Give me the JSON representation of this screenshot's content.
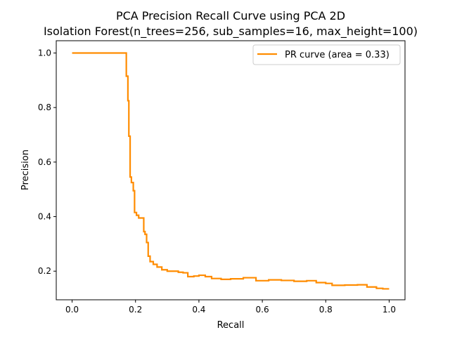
{
  "chart_data": {
    "type": "line",
    "title": "PCA Precision Recall Curve using PCA 2D",
    "subtitle": "Isolation Forest(n_trees=256, sub_samples=16, max_height=100)",
    "xlabel": "Recall",
    "ylabel": "Precision",
    "xlim": [
      -0.05,
      1.05
    ],
    "ylim": [
      0.095,
      1.045
    ],
    "xticks": [
      0.0,
      0.2,
      0.4,
      0.6,
      0.8,
      1.0
    ],
    "xtick_labels": [
      "0.0",
      "0.2",
      "0.4",
      "0.6",
      "0.8",
      "1.0"
    ],
    "yticks": [
      0.2,
      0.4,
      0.6,
      0.8,
      1.0
    ],
    "ytick_labels": [
      "0.2",
      "0.4",
      "0.6",
      "0.8",
      "1.0"
    ],
    "grid": false,
    "legend_position": "top-right",
    "step": true,
    "series": [
      {
        "name": "PR curve (area = 0.33)",
        "color": "#ff8c00",
        "points": [
          [
            0.0,
            1.0
          ],
          [
            0.171,
            1.0
          ],
          [
            0.171,
            0.915
          ],
          [
            0.176,
            0.915
          ],
          [
            0.176,
            0.825
          ],
          [
            0.179,
            0.825
          ],
          [
            0.179,
            0.695
          ],
          [
            0.183,
            0.695
          ],
          [
            0.183,
            0.545
          ],
          [
            0.187,
            0.545
          ],
          [
            0.187,
            0.525
          ],
          [
            0.193,
            0.525
          ],
          [
            0.193,
            0.495
          ],
          [
            0.197,
            0.495
          ],
          [
            0.197,
            0.415
          ],
          [
            0.203,
            0.415
          ],
          [
            0.203,
            0.405
          ],
          [
            0.21,
            0.405
          ],
          [
            0.21,
            0.395
          ],
          [
            0.226,
            0.395
          ],
          [
            0.226,
            0.345
          ],
          [
            0.23,
            0.345
          ],
          [
            0.23,
            0.335
          ],
          [
            0.235,
            0.335
          ],
          [
            0.235,
            0.305
          ],
          [
            0.24,
            0.305
          ],
          [
            0.24,
            0.255
          ],
          [
            0.246,
            0.255
          ],
          [
            0.246,
            0.235
          ],
          [
            0.256,
            0.235
          ],
          [
            0.256,
            0.225
          ],
          [
            0.268,
            0.225
          ],
          [
            0.268,
            0.215
          ],
          [
            0.283,
            0.215
          ],
          [
            0.283,
            0.205
          ],
          [
            0.3,
            0.205
          ],
          [
            0.3,
            0.2
          ],
          [
            0.335,
            0.2
          ],
          [
            0.335,
            0.196
          ],
          [
            0.35,
            0.196
          ],
          [
            0.35,
            0.194
          ],
          [
            0.365,
            0.194
          ],
          [
            0.365,
            0.18
          ],
          [
            0.384,
            0.18
          ],
          [
            0.384,
            0.182
          ],
          [
            0.4,
            0.182
          ],
          [
            0.4,
            0.185
          ],
          [
            0.42,
            0.185
          ],
          [
            0.42,
            0.18
          ],
          [
            0.44,
            0.18
          ],
          [
            0.44,
            0.173
          ],
          [
            0.47,
            0.173
          ],
          [
            0.47,
            0.17
          ],
          [
            0.5,
            0.17
          ],
          [
            0.5,
            0.172
          ],
          [
            0.54,
            0.172
          ],
          [
            0.54,
            0.176
          ],
          [
            0.58,
            0.176
          ],
          [
            0.58,
            0.165
          ],
          [
            0.62,
            0.165
          ],
          [
            0.62,
            0.168
          ],
          [
            0.66,
            0.168
          ],
          [
            0.66,
            0.166
          ],
          [
            0.7,
            0.166
          ],
          [
            0.7,
            0.163
          ],
          [
            0.74,
            0.163
          ],
          [
            0.74,
            0.165
          ],
          [
            0.77,
            0.165
          ],
          [
            0.77,
            0.158
          ],
          [
            0.8,
            0.158
          ],
          [
            0.8,
            0.155
          ],
          [
            0.82,
            0.155
          ],
          [
            0.82,
            0.148
          ],
          [
            0.86,
            0.148
          ],
          [
            0.86,
            0.149
          ],
          [
            0.9,
            0.149
          ],
          [
            0.9,
            0.15
          ],
          [
            0.93,
            0.15
          ],
          [
            0.93,
            0.142
          ],
          [
            0.96,
            0.142
          ],
          [
            0.96,
            0.137
          ],
          [
            0.98,
            0.137
          ],
          [
            0.98,
            0.135
          ],
          [
            1.0,
            0.135
          ]
        ]
      }
    ]
  }
}
